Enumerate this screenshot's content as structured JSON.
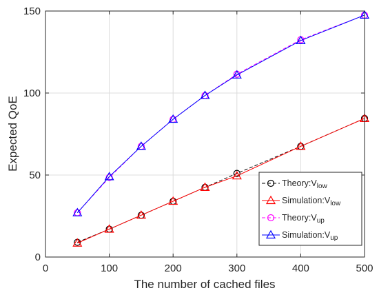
{
  "chart_data": {
    "type": "line",
    "xlabel": "The number of cached files",
    "ylabel": "Expected QoE",
    "xlim": [
      0,
      500
    ],
    "ylim": [
      0,
      150
    ],
    "xticks": [
      0,
      100,
      200,
      300,
      400,
      500
    ],
    "yticks": [
      0,
      50,
      100,
      150
    ],
    "grid": true,
    "legend_position": "bottom-right",
    "x": [
      50,
      100,
      150,
      200,
      250,
      300,
      400,
      500
    ],
    "series": [
      {
        "name": "Theory:V",
        "subscript": "low",
        "color": "#000000",
        "marker": "circle",
        "dashed": true,
        "values": [
          9,
          17,
          25.5,
          34,
          42.5,
          51,
          67.5,
          84.5
        ]
      },
      {
        "name": "Simulation:V",
        "subscript": "low",
        "color": "#ff0000",
        "marker": "triangle",
        "dashed": false,
        "values": [
          8.5,
          17,
          25.5,
          34,
          42.5,
          49.5,
          67.5,
          84.5
        ]
      },
      {
        "name": "Theory:V",
        "subscript": "up",
        "color": "#ff00ff",
        "marker": "circle",
        "dashed": true,
        "values": [
          27,
          48.5,
          67.5,
          84,
          98.5,
          111.5,
          132.5,
          147.5
        ]
      },
      {
        "name": "Simulation:V",
        "subscript": "up",
        "color": "#0000ff",
        "marker": "triangle",
        "dashed": false,
        "values": [
          27,
          49,
          67.5,
          84,
          98.5,
          111,
          132,
          147.5
        ]
      }
    ]
  }
}
